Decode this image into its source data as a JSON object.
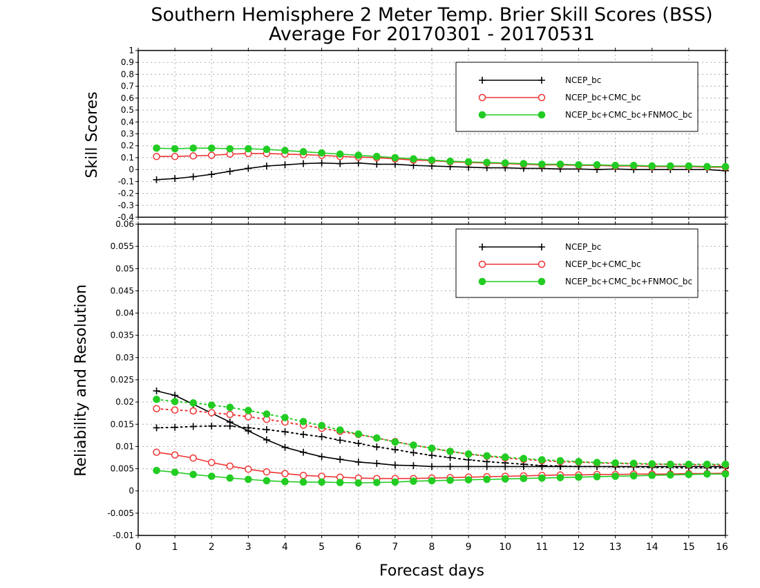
{
  "title_line1": "Southern Hemisphere 2 Meter Temp. Brier Skill Scores (BSS)",
  "title_line2": "Average For 20170301 - 20170531",
  "xlabel": "Forecast days",
  "colors": {
    "NCEP_bc": "#000000",
    "NCEP_bc+CMC_bc": "#ee3333",
    "NCEP_bc+CMC_bc+FNMOC_bc": "#22cc22"
  },
  "chart_data": [
    {
      "type": "line",
      "ylabel": "Skill Scores",
      "ylim": [
        -0.4,
        1
      ],
      "yticks": [
        -0.4,
        -0.3,
        -0.2,
        -0.1,
        0,
        0.1,
        0.2,
        0.3,
        0.4,
        0.5,
        0.6,
        0.7,
        0.8,
        0.9,
        1
      ],
      "xlim": [
        0,
        16
      ],
      "xticks": [
        0,
        1,
        2,
        3,
        4,
        5,
        6,
        7,
        8,
        9,
        10,
        11,
        12,
        13,
        14,
        15,
        16
      ],
      "grid": true,
      "legend": "top-right",
      "x": [
        0.5,
        1,
        1.5,
        2,
        2.5,
        3,
        3.5,
        4,
        4.5,
        5,
        5.5,
        6,
        6.5,
        7,
        7.5,
        8,
        8.5,
        9,
        9.5,
        10,
        10.5,
        11,
        11.5,
        12,
        12.5,
        13,
        13.5,
        14,
        14.5,
        15,
        15.5,
        16
      ],
      "series": [
        {
          "name": "NCEP_bc",
          "marker": "plus",
          "style": "solid",
          "values": [
            -0.085,
            -0.075,
            -0.06,
            -0.04,
            -0.015,
            0.01,
            0.03,
            0.04,
            0.05,
            0.055,
            0.05,
            0.055,
            0.045,
            0.045,
            0.035,
            0.03,
            0.025,
            0.02,
            0.015,
            0.015,
            0.01,
            0.01,
            0.005,
            0.005,
            0.0,
            0.005,
            0.0,
            0.0,
            0.0,
            0.0,
            0.0,
            -0.01
          ]
        },
        {
          "name": "NCEP_bc+CMC_bc",
          "marker": "circle-open",
          "style": "solid",
          "values": [
            0.11,
            0.11,
            0.115,
            0.12,
            0.13,
            0.135,
            0.135,
            0.13,
            0.125,
            0.12,
            0.11,
            0.105,
            0.1,
            0.09,
            0.08,
            0.075,
            0.065,
            0.06,
            0.055,
            0.05,
            0.045,
            0.04,
            0.04,
            0.035,
            0.035,
            0.03,
            0.03,
            0.025,
            0.025,
            0.025,
            0.02,
            0.02
          ]
        },
        {
          "name": "NCEP_bc+CMC_bc+FNMOC_bc",
          "marker": "circle-filled",
          "style": "solid",
          "values": [
            0.18,
            0.175,
            0.18,
            0.18,
            0.175,
            0.175,
            0.17,
            0.16,
            0.15,
            0.14,
            0.13,
            0.12,
            0.11,
            0.1,
            0.09,
            0.08,
            0.07,
            0.065,
            0.06,
            0.055,
            0.05,
            0.045,
            0.045,
            0.04,
            0.04,
            0.035,
            0.035,
            0.03,
            0.03,
            0.03,
            0.025,
            0.025
          ]
        }
      ]
    },
    {
      "type": "line",
      "ylabel": "Reliability and Resolution",
      "ylim": [
        -0.01,
        0.06
      ],
      "yticks": [
        -0.01,
        -0.005,
        0,
        0.005,
        0.01,
        0.015,
        0.02,
        0.025,
        0.03,
        0.035,
        0.04,
        0.045,
        0.05,
        0.055,
        0.06
      ],
      "xlim": [
        0,
        16
      ],
      "xticks": [
        0,
        1,
        2,
        3,
        4,
        5,
        6,
        7,
        8,
        9,
        10,
        11,
        12,
        13,
        14,
        15,
        16
      ],
      "grid": true,
      "legend": "top-right",
      "x": [
        0.5,
        1,
        1.5,
        2,
        2.5,
        3,
        3.5,
        4,
        4.5,
        5,
        5.5,
        6,
        6.5,
        7,
        7.5,
        8,
        8.5,
        9,
        9.5,
        10,
        10.5,
        11,
        11.5,
        12,
        12.5,
        13,
        13.5,
        14,
        14.5,
        15,
        15.5,
        16
      ],
      "series": [
        {
          "name": "NCEP_bc",
          "metric": "reliability",
          "marker": "plus",
          "style": "solid",
          "legend": true,
          "values": [
            0.0225,
            0.0215,
            0.0195,
            0.0175,
            0.0155,
            0.0135,
            0.0115,
            0.0098,
            0.0087,
            0.0077,
            0.0071,
            0.0065,
            0.0062,
            0.0058,
            0.0057,
            0.0055,
            0.0055,
            0.0055,
            0.0055,
            0.0055,
            0.0055,
            0.0055,
            0.0055,
            0.0055,
            0.0055,
            0.0055,
            0.0055,
            0.0055,
            0.0055,
            0.0055,
            0.0055,
            0.0055
          ]
        },
        {
          "name": "NCEP_bc",
          "metric": "resolution",
          "marker": "plus",
          "style": "dotted",
          "legend": false,
          "values": [
            0.0142,
            0.0143,
            0.0145,
            0.0146,
            0.0146,
            0.0142,
            0.0138,
            0.0133,
            0.0127,
            0.0122,
            0.0114,
            0.0107,
            0.0099,
            0.0093,
            0.0086,
            0.008,
            0.0075,
            0.007,
            0.0066,
            0.0063,
            0.006,
            0.0057,
            0.0056,
            0.0055,
            0.0055,
            0.0054,
            0.0054,
            0.0053,
            0.0053,
            0.0052,
            0.0052,
            0.0052
          ]
        },
        {
          "name": "NCEP_bc+CMC_bc",
          "metric": "reliability",
          "marker": "circle-open",
          "style": "solid",
          "legend": true,
          "values": [
            0.0087,
            0.0081,
            0.0074,
            0.0064,
            0.0056,
            0.0049,
            0.0043,
            0.0039,
            0.0035,
            0.0033,
            0.0031,
            0.0029,
            0.0028,
            0.0028,
            0.0028,
            0.0029,
            0.003,
            0.0031,
            0.0032,
            0.0033,
            0.0034,
            0.0035,
            0.0036,
            0.0036,
            0.0037,
            0.0037,
            0.0038,
            0.0038,
            0.0038,
            0.0039,
            0.0039,
            0.004
          ]
        },
        {
          "name": "NCEP_bc+CMC_bc",
          "metric": "resolution",
          "marker": "circle-open",
          "style": "dotted",
          "legend": false,
          "values": [
            0.0185,
            0.0182,
            0.018,
            0.0176,
            0.0172,
            0.0167,
            0.0161,
            0.0155,
            0.0148,
            0.0141,
            0.0134,
            0.0127,
            0.0119,
            0.0111,
            0.0103,
            0.0096,
            0.0089,
            0.0083,
            0.0078,
            0.0074,
            0.0071,
            0.0068,
            0.0066,
            0.0065,
            0.0063,
            0.0062,
            0.0061,
            0.006,
            0.006,
            0.0059,
            0.0059,
            0.0058
          ]
        },
        {
          "name": "NCEP_bc+CMC_bc+FNMOC_bc",
          "metric": "reliability",
          "marker": "circle-filled",
          "style": "solid",
          "legend": true,
          "values": [
            0.0046,
            0.0042,
            0.0037,
            0.0033,
            0.0029,
            0.0026,
            0.0023,
            0.0021,
            0.002,
            0.002,
            0.0019,
            0.0018,
            0.0019,
            0.002,
            0.0022,
            0.0023,
            0.0024,
            0.0025,
            0.0026,
            0.0027,
            0.0028,
            0.0029,
            0.003,
            0.0031,
            0.0032,
            0.0033,
            0.0034,
            0.0035,
            0.0036,
            0.0037,
            0.0038,
            0.0038
          ]
        },
        {
          "name": "NCEP_bc+CMC_bc+FNMOC_bc",
          "metric": "resolution",
          "marker": "circle-filled",
          "style": "dotted",
          "legend": false,
          "values": [
            0.0206,
            0.0201,
            0.0198,
            0.0193,
            0.0188,
            0.0181,
            0.0173,
            0.0165,
            0.0156,
            0.0147,
            0.0137,
            0.0128,
            0.0119,
            0.011,
            0.0103,
            0.0096,
            0.0089,
            0.0083,
            0.0079,
            0.0076,
            0.0073,
            0.007,
            0.0068,
            0.0066,
            0.0064,
            0.0063,
            0.0062,
            0.0061,
            0.006,
            0.006,
            0.006,
            0.006
          ]
        }
      ]
    }
  ]
}
